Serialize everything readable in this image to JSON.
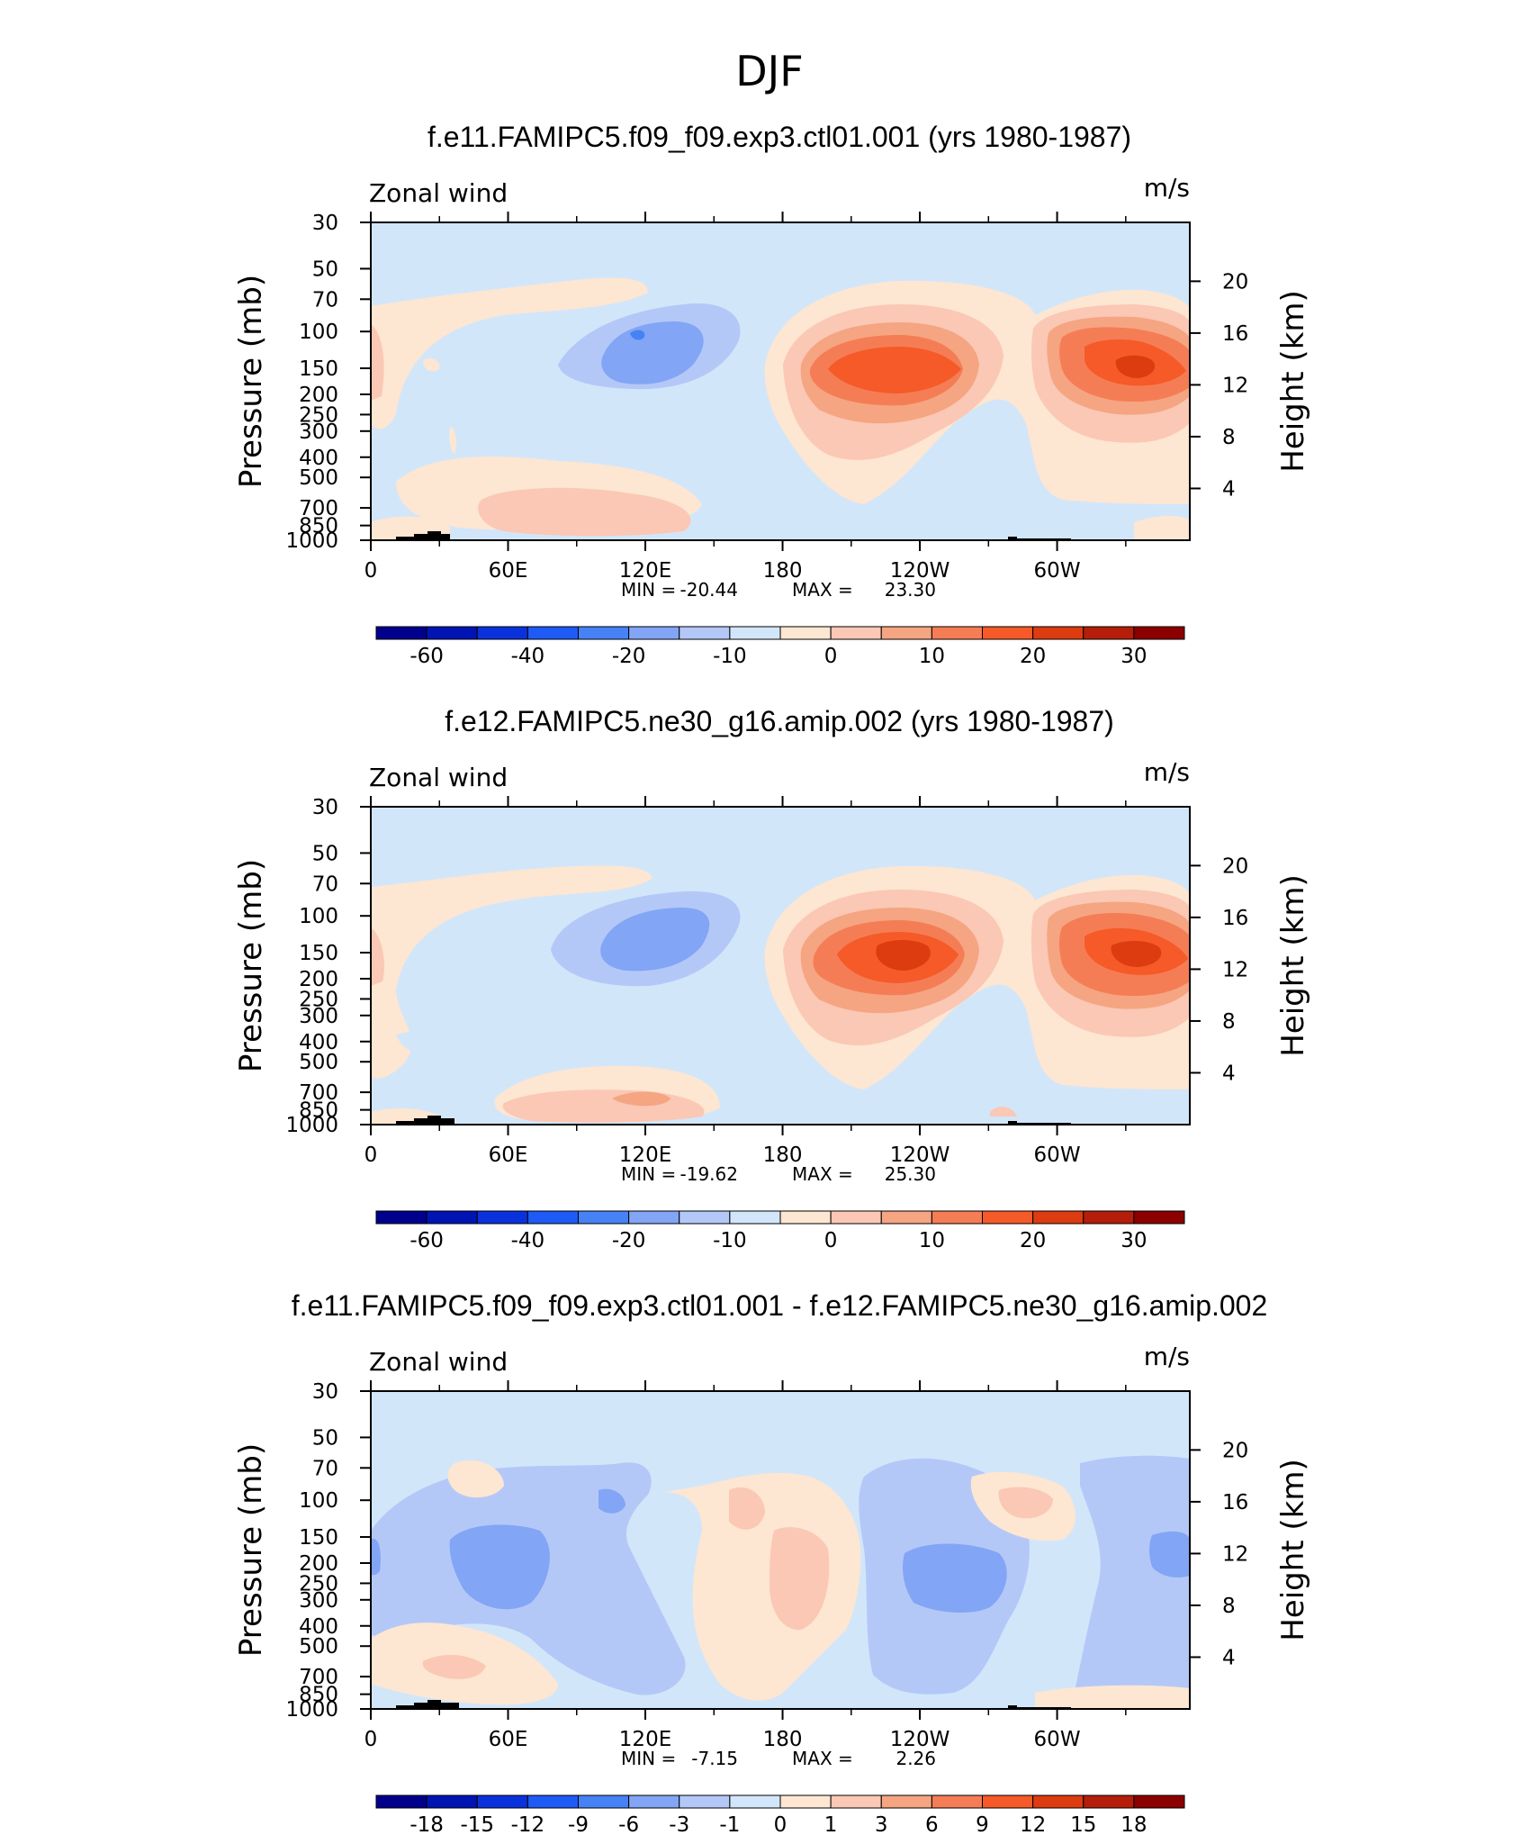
{
  "figure": {
    "title": "DJF"
  },
  "colors": {
    "abs_scale": [
      "#00008c",
      "#0014b4",
      "#0a32dc",
      "#1e5af5",
      "#4682f5",
      "#82a5f5",
      "#b4c8f8",
      "#d2e6fa",
      "#fde6d2",
      "#fac8b4",
      "#f5a582",
      "#f57d55",
      "#f55a28",
      "#dc3c0f",
      "#b41e0a",
      "#8c0000"
    ],
    "diff_scale": [
      "#00008c",
      "#0014b4",
      "#0a32dc",
      "#1e5af5",
      "#4682f5",
      "#82a5f5",
      "#b4c8f8",
      "#d2e6fa",
      "#fde6d2",
      "#fac8b4",
      "#f5a582",
      "#f57d55",
      "#f55a28",
      "#dc3c0f",
      "#b41e0a",
      "#8c0000"
    ],
    "topography": "#000000"
  },
  "chart_data": [
    {
      "type": "heatmap",
      "title": "f.e11.FAMIPC5.f09_f09.exp3.ctl01.001 (yrs 1980-1987)",
      "left_label": "Zonal wind",
      "units": "m/s",
      "ylabel": "Pressure (mb)",
      "ylabel_right": "Height (km)",
      "xticks": [
        "0",
        "60E",
        "120E",
        "180",
        "120W",
        "60W"
      ],
      "yticks": [
        "30",
        "50",
        "70",
        "100",
        "150",
        "200",
        "250",
        "300",
        "400",
        "500",
        "700",
        "850",
        "1000"
      ],
      "yticks_right": [
        "20",
        "16",
        "12",
        "8",
        "4"
      ],
      "stats": {
        "min_label": "MIN =",
        "min": "-20.44",
        "max_label": "MAX =",
        "max": "23.30"
      },
      "colorbar_labels": [
        "-60",
        "-40",
        "-20",
        "-10",
        "0",
        "10",
        "20",
        "30"
      ],
      "features": [
        {
          "lon": 130,
          "p": 150,
          "value": -20,
          "kind": "easterly"
        },
        {
          "lon": 242,
          "p": 150,
          "value": 23,
          "kind": "westerly"
        },
        {
          "lon": 332,
          "p": 150,
          "value": 22,
          "kind": "westerly"
        }
      ]
    },
    {
      "type": "heatmap",
      "title": "f.e12.FAMIPC5.ne30_g16.amip.002 (yrs 1980-1987)",
      "left_label": "Zonal wind",
      "units": "m/s",
      "ylabel": "Pressure (mb)",
      "ylabel_right": "Height (km)",
      "xticks": [
        "0",
        "60E",
        "120E",
        "180",
        "120W",
        "60W"
      ],
      "yticks": [
        "30",
        "50",
        "70",
        "100",
        "150",
        "200",
        "250",
        "300",
        "400",
        "500",
        "700",
        "850",
        "1000"
      ],
      "yticks_right": [
        "20",
        "16",
        "12",
        "8",
        "4"
      ],
      "stats": {
        "min_label": "MIN =",
        "min": "-19.62",
        "max_label": "MAX =",
        "max": "25.30"
      },
      "colorbar_labels": [
        "-60",
        "-40",
        "-20",
        "-10",
        "0",
        "10",
        "20",
        "30"
      ],
      "features": [
        {
          "lon": 132,
          "p": 150,
          "value": -19,
          "kind": "easterly"
        },
        {
          "lon": 240,
          "p": 160,
          "value": 25,
          "kind": "westerly"
        },
        {
          "lon": 332,
          "p": 160,
          "value": 24,
          "kind": "westerly"
        }
      ]
    },
    {
      "type": "heatmap",
      "title": "f.e11.FAMIPC5.f09_f09.exp3.ctl01.001 - f.e12.FAMIPC5.ne30_g16.amip.002",
      "left_label": "Zonal wind",
      "units": "m/s",
      "ylabel": "Pressure (mb)",
      "ylabel_right": "Height (km)",
      "xticks": [
        "0",
        "60E",
        "120E",
        "180",
        "120W",
        "60W"
      ],
      "yticks": [
        "30",
        "50",
        "70",
        "100",
        "150",
        "200",
        "250",
        "300",
        "400",
        "500",
        "700",
        "850",
        "1000"
      ],
      "yticks_right": [
        "20",
        "16",
        "12",
        "8",
        "4"
      ],
      "stats": {
        "min_label": "MIN =",
        "min": "-7.15",
        "max_label": "MAX =",
        "max": "2.26"
      },
      "colorbar_labels": [
        "-18",
        "-15",
        "-12",
        "-9",
        "-6",
        "-3",
        "-1",
        "0",
        "1",
        "3",
        "6",
        "9",
        "12",
        "15",
        "18"
      ],
      "features": [
        {
          "lon": 60,
          "p": 200,
          "value": -7,
          "kind": "negative"
        },
        {
          "lon": 240,
          "p": 220,
          "value": -6,
          "kind": "negative"
        },
        {
          "lon": 170,
          "p": 150,
          "value": 2,
          "kind": "positive"
        }
      ]
    }
  ]
}
